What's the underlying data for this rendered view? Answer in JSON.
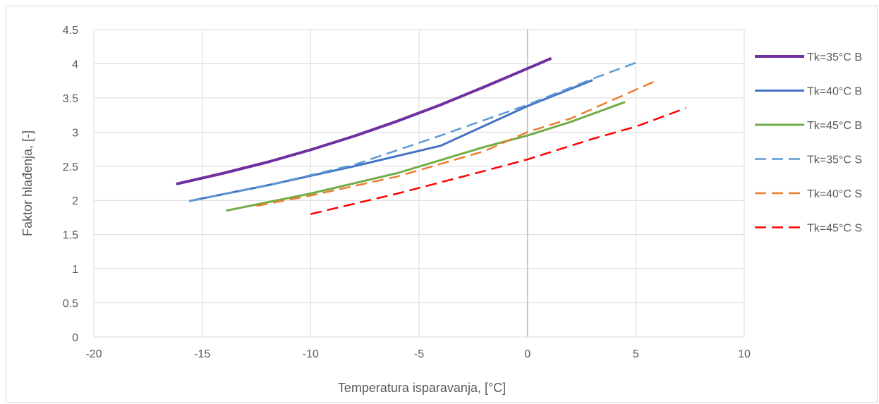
{
  "chart_data": {
    "type": "line",
    "title": "",
    "xlabel": "Temperatura isparavanja, [°C]",
    "ylabel": "Faktor hlađenja, [-]",
    "xlim": [
      -20,
      10
    ],
    "ylim": [
      0,
      4.5
    ],
    "x_ticks": [
      -20,
      -15,
      -10,
      -5,
      0,
      5,
      10
    ],
    "y_ticks": [
      0,
      0.5,
      1,
      1.5,
      2,
      2.5,
      3,
      3.5,
      4,
      4.5
    ],
    "grid": true,
    "legend_position": "right",
    "series": [
      {
        "name": "Tk=35°C B",
        "color": "#7030a0",
        "dash": "solid",
        "width": 4,
        "x": [
          -16.2,
          -14,
          -12,
          -10,
          -8,
          -6,
          -4,
          -2,
          0,
          1.1
        ],
        "y": [
          2.24,
          2.4,
          2.56,
          2.74,
          2.94,
          3.16,
          3.4,
          3.66,
          3.93,
          4.08
        ]
      },
      {
        "name": "Tk=40°C B",
        "color": "#4472c4",
        "dash": "solid",
        "width": 3,
        "x": [
          -15.6,
          -12,
          -8,
          -4,
          0,
          3
        ],
        "y": [
          1.99,
          2.22,
          2.5,
          2.8,
          3.38,
          3.76
        ]
      },
      {
        "name": "Tk=45°C B",
        "color": "#70ad47",
        "dash": "solid",
        "width": 3,
        "x": [
          -13.9,
          -10,
          -6,
          -2,
          0,
          2,
          4.5
        ],
        "y": [
          1.85,
          2.1,
          2.4,
          2.78,
          2.95,
          3.15,
          3.44
        ]
      },
      {
        "name": "Tk=35°C S",
        "color": "#5b9bd5",
        "dash": "dashed",
        "width": 2.5,
        "x": [
          -15.6,
          -12,
          -8,
          -4,
          0,
          3,
          5.2
        ],
        "y": [
          1.99,
          2.22,
          2.52,
          2.95,
          3.4,
          3.78,
          4.04
        ]
      },
      {
        "name": "Tk=40°C S",
        "color": "#ed7d31",
        "dash": "dashed",
        "width": 2.5,
        "x": [
          -12.5,
          -10,
          -6,
          -2,
          0,
          2,
          6
        ],
        "y": [
          1.92,
          2.07,
          2.35,
          2.72,
          3.0,
          3.2,
          3.76
        ]
      },
      {
        "name": "Tk=45°C S",
        "color": "#ff0000",
        "dash": "dashed",
        "width": 2.5,
        "x": [
          -10,
          -6,
          -2,
          0,
          3,
          5,
          7.3
        ],
        "y": [
          1.8,
          2.1,
          2.43,
          2.6,
          2.9,
          3.08,
          3.35
        ]
      }
    ]
  }
}
